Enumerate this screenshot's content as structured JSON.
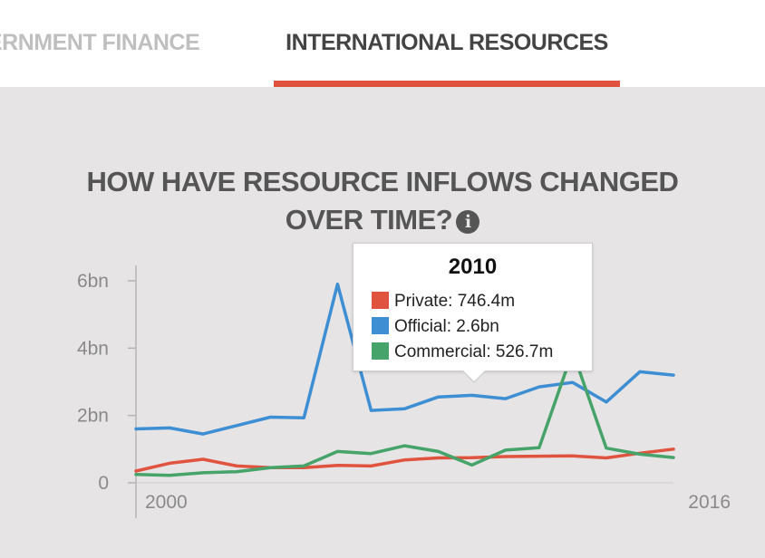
{
  "tabs": {
    "inactive_label": "ERNMENT FINANCE",
    "active_label": "INTERNATIONAL RESOURCES"
  },
  "colors": {
    "accent": "#e0533f",
    "private": "#e0533f",
    "official": "#3d8ed3",
    "commercial": "#46a36a"
  },
  "icons": {
    "info": "info-circle-icon"
  },
  "chart_data": {
    "type": "line",
    "title_line1": "HOW HAVE RESOURCE INFLOWS CHANGED",
    "title_line2": "OVER TIME?",
    "x": [
      2000,
      2001,
      2002,
      2003,
      2004,
      2005,
      2006,
      2007,
      2008,
      2009,
      2010,
      2011,
      2012,
      2013,
      2014,
      2015,
      2016
    ],
    "series": [
      {
        "name": "Private",
        "color": "#e0533f",
        "values": [
          0.35,
          0.58,
          0.7,
          0.5,
          0.45,
          0.45,
          0.52,
          0.5,
          0.68,
          0.74,
          0.7464,
          0.78,
          0.79,
          0.8,
          0.74,
          0.88,
          1.0
        ]
      },
      {
        "name": "Official",
        "color": "#3d8ed3",
        "values": [
          1.6,
          1.63,
          1.45,
          1.7,
          1.95,
          1.93,
          5.9,
          2.15,
          2.2,
          2.55,
          2.6,
          2.5,
          2.85,
          2.98,
          2.4,
          3.3,
          3.2
        ]
      },
      {
        "name": "Commercial",
        "color": "#46a36a",
        "values": [
          0.25,
          0.22,
          0.3,
          0.33,
          0.45,
          0.5,
          0.93,
          0.87,
          1.1,
          0.93,
          0.5267,
          0.97,
          1.04,
          3.9,
          1.03,
          0.85,
          0.75
        ]
      }
    ],
    "ylim": [
      0,
      6
    ],
    "y_ticks": [
      "0",
      "2bn",
      "4bn",
      "6bn"
    ],
    "x_tick_labels": [
      "2000",
      "2016"
    ],
    "tooltip": {
      "year": "2010",
      "rows": [
        {
          "label": "Private: 746.4m",
          "series": "Private"
        },
        {
          "label": "Official: 2.6bn",
          "series": "Official"
        },
        {
          "label": "Commercial: 526.7m",
          "series": "Commercial"
        }
      ]
    }
  }
}
